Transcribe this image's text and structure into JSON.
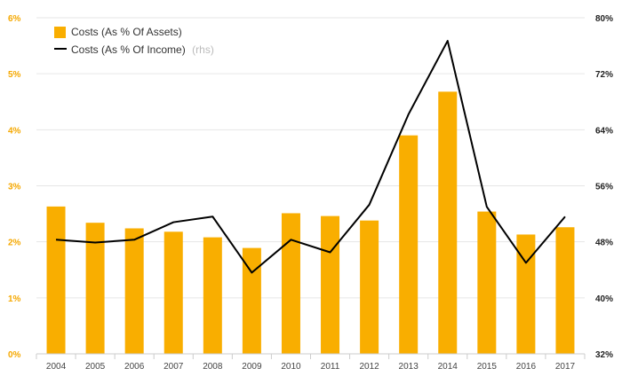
{
  "chart_data": {
    "type": "bar+line",
    "categories": [
      "2004",
      "2005",
      "2006",
      "2007",
      "2008",
      "2009",
      "2010",
      "2011",
      "2012",
      "2013",
      "2014",
      "2015",
      "2016",
      "2017"
    ],
    "series": [
      {
        "name": "Costs (As % Of Assets)",
        "kind": "bar",
        "axis": "left",
        "color": "#f9ae00",
        "values": [
          2.63,
          2.34,
          2.24,
          2.18,
          2.08,
          1.89,
          2.51,
          2.46,
          2.38,
          3.9,
          4.68,
          2.54,
          2.13,
          2.26
        ]
      },
      {
        "name": "Costs (As % Of Income)",
        "suffix": "(rhs)",
        "kind": "line",
        "axis": "right",
        "color": "#000000",
        "values": [
          48.3,
          47.9,
          48.3,
          50.8,
          51.6,
          43.6,
          48.3,
          46.5,
          53.3,
          66.2,
          76.7,
          53.0,
          45.0,
          51.6
        ]
      }
    ],
    "y_left": {
      "min": 0,
      "max": 6,
      "ticks": [
        "0%",
        "1%",
        "2%",
        "3%",
        "4%",
        "5%",
        "6%"
      ],
      "color": "#f5a800"
    },
    "y_right": {
      "min": 32,
      "max": 80,
      "ticks": [
        "32%",
        "40%",
        "48%",
        "56%",
        "64%",
        "72%",
        "80%"
      ],
      "color": "#222222"
    },
    "grid": true
  }
}
